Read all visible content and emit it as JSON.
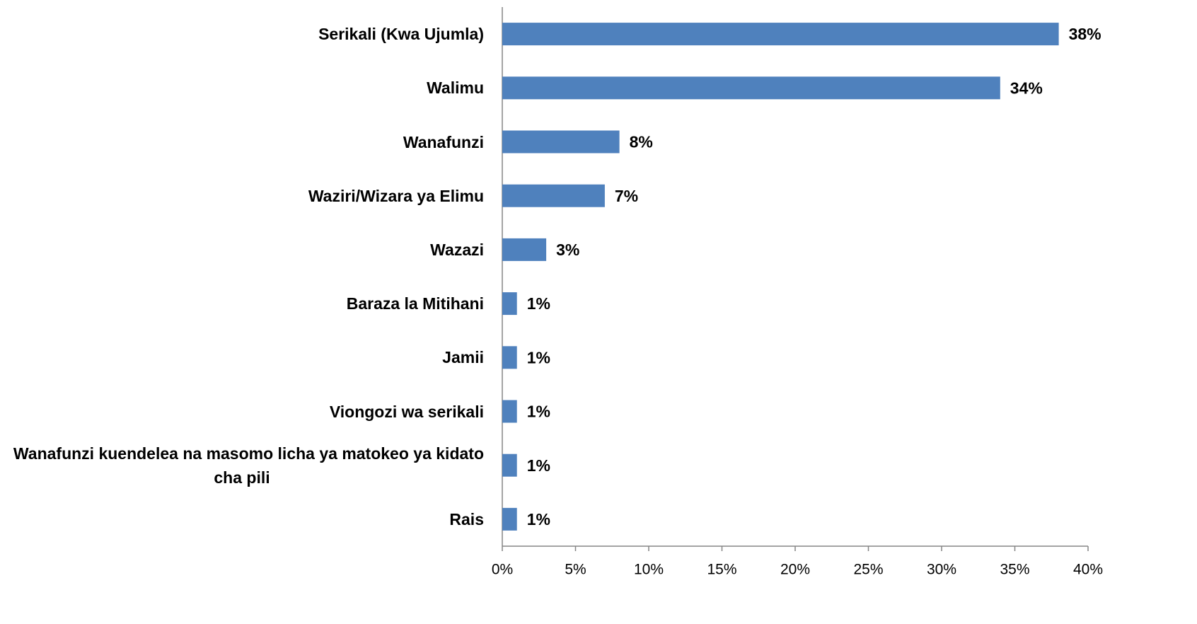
{
  "chart_data": {
    "type": "bar",
    "orientation": "horizontal",
    "categories": [
      "Serikali (Kwa Ujumla)",
      "Walimu",
      "Wanafunzi",
      "Waziri/Wizara ya Elimu",
      "Wazazi",
      "Baraza la Mitihani",
      "Jamii",
      "Viongozi wa serikali",
      "Wanafunzi kuendelea na masomo licha ya matokeo ya kidato cha pili",
      "Rais"
    ],
    "values": [
      38,
      34,
      8,
      7,
      3,
      1,
      1,
      1,
      1,
      1
    ],
    "value_labels": [
      "38%",
      "34%",
      "8%",
      "7%",
      "3%",
      "1%",
      "1%",
      "1%",
      "1%",
      "1%"
    ],
    "color": "#4f81bd",
    "xlim": [
      0,
      40
    ],
    "xticks": [
      {
        "value": 0,
        "label": "0%"
      },
      {
        "value": 5,
        "label": "5%"
      },
      {
        "value": 10,
        "label": "10%"
      },
      {
        "value": 15,
        "label": "15%"
      },
      {
        "value": 20,
        "label": "20%"
      },
      {
        "value": 25,
        "label": "25%"
      },
      {
        "value": 30,
        "label": "30%"
      },
      {
        "value": 35,
        "label": "35%"
      },
      {
        "value": 40,
        "label": "40%"
      }
    ],
    "grid": false
  }
}
